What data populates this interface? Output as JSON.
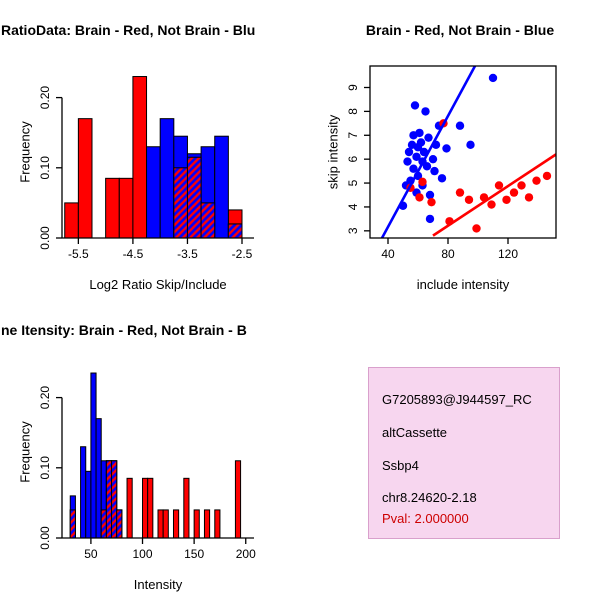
{
  "page": {
    "background": "#ffffff"
  },
  "colors": {
    "brain": "#ff0000",
    "not_brain": "#0000ff",
    "axis": "#000000"
  },
  "chart_data": [
    {
      "id": "ratio-histogram",
      "type": "bar",
      "svg": "svg1",
      "title": "RatioData: Brain - Red, Not Brain - Blu",
      "xlabel": "Log2 Ratio Skip/Include",
      "ylabel": "Frequency",
      "xlim": [
        -5.8,
        -2.28
      ],
      "ylim": [
        0,
        0.245
      ],
      "bin_width": 0.25,
      "grid": false,
      "legend": "none",
      "xticks": {
        "values": [
          -5.5,
          -4.5,
          -3.5,
          -2.5
        ],
        "labels": [
          "-5.5",
          "-4.5",
          "-3.5",
          "-2.5"
        ]
      },
      "yticks": {
        "values": [
          0,
          0.1,
          0.2
        ],
        "labels": [
          "0.00",
          "0.10",
          "0.20"
        ]
      },
      "series": [
        {
          "name": "Brain",
          "color": "#ff0000",
          "bins": [
            [
              -5.75,
              0.05
            ],
            [
              -5.5,
              0.17
            ],
            [
              -5.0,
              0.085
            ],
            [
              -4.75,
              0.085
            ],
            [
              -4.5,
              0.23
            ],
            [
              -3.75,
              0.1
            ],
            [
              -3.5,
              0.115
            ],
            [
              -3.25,
              0.05
            ],
            [
              -2.75,
              0.04
            ]
          ]
        },
        {
          "name": "Not Brain",
          "color": "#0000ff",
          "bins": [
            [
              -4.25,
              0.13
            ],
            [
              -4.0,
              0.17
            ],
            [
              -3.75,
              0.145
            ],
            [
              -3.5,
              0.12
            ],
            [
              -3.25,
              0.13
            ],
            [
              -3.0,
              0.145
            ],
            [
              -2.75,
              0.02
            ]
          ]
        }
      ]
    },
    {
      "id": "intensity-scatter",
      "type": "scatter",
      "svg": "svg2",
      "title": "Brain - Red, Not Brain - Blue",
      "xlabel": "include intensity",
      "ylabel": "skip intensity",
      "xlim": [
        28,
        152
      ],
      "ylim": [
        2.7,
        9.9
      ],
      "grid": false,
      "legend": "none",
      "xticks": {
        "values": [
          40,
          80,
          120
        ],
        "labels": [
          "40",
          "80",
          "120"
        ]
      },
      "yticks": {
        "values": [
          3,
          4,
          5,
          6,
          7,
          8,
          9
        ],
        "labels": [
          "3",
          "4",
          "5",
          "6",
          "7",
          "8",
          "9"
        ]
      },
      "series": [
        {
          "name": "Not Brain",
          "color": "#0000ff",
          "points": [
            [
              50,
              4.05
            ],
            [
              52,
              4.9
            ],
            [
              53,
              5.9
            ],
            [
              54,
              6.3
            ],
            [
              55,
              5.1
            ],
            [
              56,
              6.6
            ],
            [
              57,
              5.6
            ],
            [
              57,
              7.0
            ],
            [
              58,
              8.25
            ],
            [
              59,
              6.1
            ],
            [
              59,
              4.6
            ],
            [
              60,
              6.5
            ],
            [
              60,
              5.3
            ],
            [
              61,
              7.1
            ],
            [
              62,
              6.7
            ],
            [
              63,
              5.9
            ],
            [
              63,
              4.9
            ],
            [
              64,
              6.3
            ],
            [
              65,
              8.0
            ],
            [
              66,
              5.7
            ],
            [
              67,
              6.9
            ],
            [
              68,
              4.5
            ],
            [
              68,
              3.5
            ],
            [
              70,
              6.0
            ],
            [
              71,
              5.5
            ],
            [
              72,
              6.6
            ],
            [
              74,
              7.4
            ],
            [
              76,
              5.2
            ],
            [
              79,
              6.45
            ],
            [
              88,
              7.4
            ],
            [
              95,
              6.6
            ],
            [
              110,
              9.4
            ]
          ]
        },
        {
          "name": "Brain",
          "color": "#ff0000",
          "points": [
            [
              55,
              4.8
            ],
            [
              61,
              4.4
            ],
            [
              63,
              5.05
            ],
            [
              69,
              4.2
            ],
            [
              77,
              7.5
            ],
            [
              81,
              3.4
            ],
            [
              88,
              4.6
            ],
            [
              94,
              4.3
            ],
            [
              99,
              3.1
            ],
            [
              104,
              4.4
            ],
            [
              109,
              4.1
            ],
            [
              114,
              4.9
            ],
            [
              119,
              4.3
            ],
            [
              124,
              4.6
            ],
            [
              129,
              4.9
            ],
            [
              134,
              4.4
            ],
            [
              139,
              5.1
            ],
            [
              146,
              5.3
            ]
          ]
        }
      ],
      "fit_lines": [
        {
          "series": "Not Brain",
          "color": "#0000ff",
          "from": [
            36,
            2.7
          ],
          "to": [
            98,
            9.9
          ]
        },
        {
          "series": "Brain",
          "color": "#ff0000",
          "from": [
            70,
            2.8
          ],
          "to": [
            152,
            6.2
          ]
        }
      ]
    },
    {
      "id": "gene-intensity-histogram",
      "type": "bar",
      "svg": "svg3",
      "title": "ne Itensity: Brain - Red, Not Brain - B",
      "xlabel": "Intensity",
      "ylabel": "Frequency",
      "xlim": [
        22,
        208
      ],
      "ylim": [
        0,
        0.245
      ],
      "bin_width": 5,
      "grid": false,
      "legend": "none",
      "xticks": {
        "values": [
          50,
          100,
          150,
          200
        ],
        "labels": [
          "50",
          "100",
          "150",
          "200"
        ]
      },
      "yticks": {
        "values": [
          0,
          0.1,
          0.2
        ],
        "labels": [
          "0.00",
          "0.10",
          "0.20"
        ]
      },
      "series": [
        {
          "name": "Brain",
          "color": "#ff0000",
          "bins": [
            [
              30,
              0.04
            ],
            [
              60,
              0.04
            ],
            [
              65,
              0.11
            ],
            [
              70,
              0.11
            ],
            [
              75,
              0.04
            ],
            [
              85,
              0.085
            ],
            [
              100,
              0.085
            ],
            [
              105,
              0.085
            ],
            [
              115,
              0.04
            ],
            [
              120,
              0.04
            ],
            [
              130,
              0.04
            ],
            [
              140,
              0.085
            ],
            [
              150,
              0.04
            ],
            [
              160,
              0.04
            ],
            [
              170,
              0.04
            ],
            [
              190,
              0.11
            ]
          ]
        },
        {
          "name": "Not Brain",
          "color": "#0000ff",
          "bins": [
            [
              30,
              0.06
            ],
            [
              40,
              0.13
            ],
            [
              45,
              0.095
            ],
            [
              50,
              0.235
            ],
            [
              55,
              0.17
            ],
            [
              60,
              0.11
            ],
            [
              65,
              0.11
            ],
            [
              70,
              0.11
            ],
            [
              75,
              0.04
            ]
          ]
        }
      ]
    }
  ],
  "info_box": {
    "bg_color": "#f7d6ef",
    "border_color": "#d9a0cc",
    "lines": [
      "G7205893@J944597_RC",
      "altCassette",
      "Ssbp4",
      "chr8.24620-2.18"
    ],
    "pval": "Pval: 2.000000",
    "pval_color": "#cd0000"
  }
}
